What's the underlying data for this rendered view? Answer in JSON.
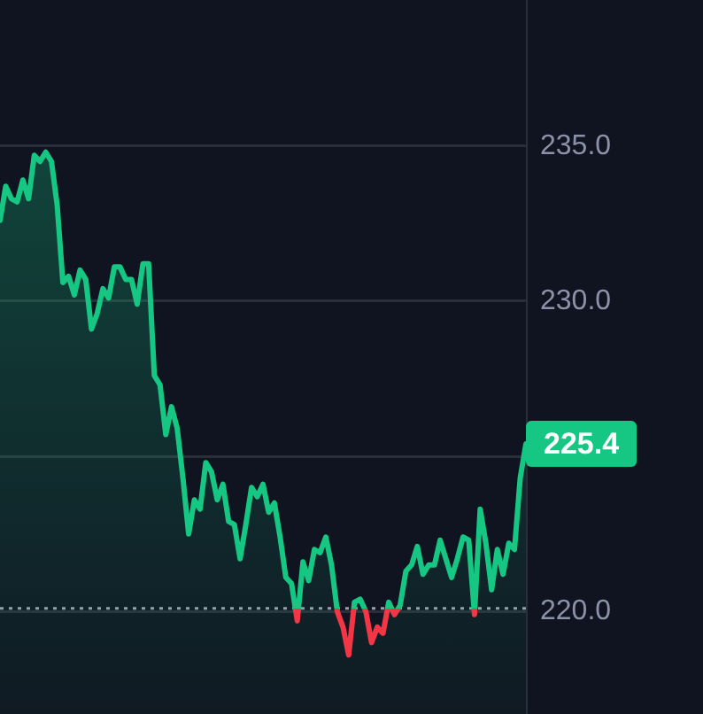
{
  "chart_data": {
    "type": "area",
    "categories": [
      null,
      null,
      null,
      null,
      null,
      null,
      null,
      null,
      null,
      null,
      null,
      null,
      null,
      null,
      null,
      null,
      null,
      null,
      null,
      null,
      null,
      null,
      null,
      null,
      null,
      null,
      null,
      null,
      null,
      null,
      null,
      null,
      null,
      null,
      null,
      null,
      null,
      null,
      null,
      null,
      null,
      null,
      null,
      null,
      null,
      null,
      null,
      null,
      null,
      null,
      null,
      null,
      null,
      null,
      null,
      null,
      null,
      null,
      null,
      null,
      null,
      null,
      null,
      null,
      null,
      null,
      null,
      null,
      null,
      null,
      null,
      null,
      null,
      null,
      null,
      null,
      null,
      null,
      null,
      null,
      null,
      null,
      null,
      null,
      null,
      null,
      null,
      null,
      null,
      null,
      null,
      null,
      null
    ],
    "series": [
      {
        "color": "#16c784",
        "colors": [
          "#16c784",
          "#16c784",
          "#16c784",
          "#16c784",
          "#16c784",
          "#16c784",
          "#16c784",
          "#16c784",
          "#16c784",
          "#16c784",
          "#16c784",
          "#16c784",
          "#16c784",
          "#16c784",
          "#16c784",
          "#16c784",
          "#16c784",
          "#16c784",
          "#16c784",
          "#16c784",
          "#16c784",
          "#16c784",
          "#16c784",
          "#16c784",
          "#16c784",
          "#16c784",
          "#16c784",
          "#16c784",
          "#16c784",
          "#16c784",
          "#16c784",
          "#16c784",
          "#16c784",
          "#16c784",
          "#16c784",
          "#16c784",
          "#16c784",
          "#16c784",
          "#16c784",
          "#16c784",
          "#16c784",
          "#16c784",
          "#16c784",
          "#16c784",
          "#16c784",
          "#16c784",
          "#16c784",
          "#16c784",
          "#16c784",
          "#16c784",
          "#16c784",
          "#16c784",
          "#f23645",
          "#16c784",
          "#16c784",
          "#16c784",
          "#16c784",
          "#16c784",
          "#16c784",
          "#f23645",
          "#f23645",
          "#f23645",
          "#16c784",
          "#16c784",
          "#f23645",
          "#f23645",
          "#f23645",
          "#f23645",
          "#16c784",
          "#f23645",
          "#16c784",
          "#16c784",
          "#16c784",
          "#16c784",
          "#16c784",
          "#16c784",
          "#16c784",
          "#16c784",
          "#16c784",
          "#16c784",
          "#16c784",
          "#16c784",
          "#16c784",
          "#f23645",
          "#16c784",
          "#16c784",
          "#16c784",
          "#16c784",
          "#16c784",
          "#16c784",
          "#16c784",
          "#16c784",
          "#16c784"
        ],
        "values": [
          232.6,
          233.7,
          233.3,
          233.2,
          233.9,
          233.3,
          234.7,
          234.5,
          234.8,
          234.5,
          233.1,
          230.6,
          230.8,
          230.2,
          231.0,
          230.7,
          229.1,
          229.6,
          230.4,
          230.1,
          231.1,
          231.1,
          230.7,
          230.7,
          229.9,
          231.2,
          231.2,
          227.6,
          227.3,
          225.7,
          226.6,
          225.9,
          224.3,
          222.5,
          223.6,
          223.3,
          224.8,
          224.5,
          223.6,
          224.1,
          222.9,
          222.8,
          221.7,
          222.8,
          224.0,
          223.7,
          224.1,
          223.2,
          223.5,
          222.4,
          221.1,
          220.9,
          219.7,
          221.6,
          221.0,
          222.0,
          221.9,
          222.4,
          221.5,
          220.0,
          219.5,
          218.6,
          220.3,
          220.4,
          220.0,
          219.0,
          219.5,
          219.3,
          220.3,
          219.9,
          220.2,
          221.3,
          221.5,
          222.1,
          221.2,
          221.5,
          221.5,
          222.3,
          221.7,
          221.1,
          221.7,
          222.4,
          222.3,
          219.9,
          223.3,
          222.2,
          220.7,
          222.0,
          221.2,
          222.2,
          222.0,
          224.3,
          225.4
        ]
      }
    ],
    "ylim": [
      216.7,
      239.7
    ],
    "yticks": [
      {
        "value": 220,
        "label": "220.0"
      },
      {
        "value": 225,
        "label": null
      },
      {
        "value": 230,
        "label": "230.0"
      },
      {
        "value": 235,
        "label": "235.0"
      }
    ],
    "grid": "y",
    "legend": false,
    "marker": "none",
    "line_style": "solid",
    "ref_lines": [
      {
        "axis": "y",
        "value": 220.1,
        "color": "#9aa0ac",
        "line_style": "dotted"
      }
    ],
    "annotations": [
      "225.4"
    ]
  }
}
